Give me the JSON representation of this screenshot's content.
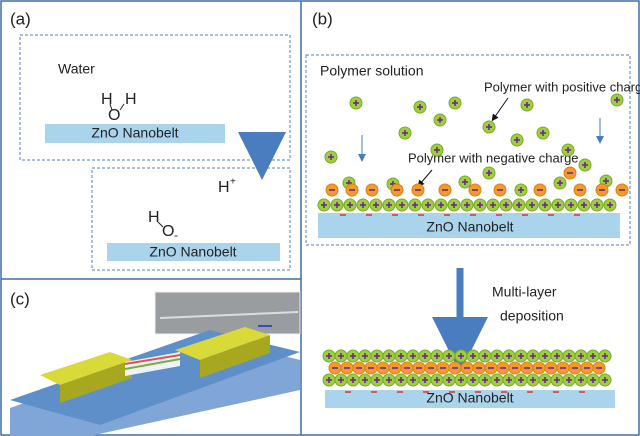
{
  "panel_a": {
    "label": "(a)",
    "medium": "Water",
    "top_molecule": [
      "H",
      "O",
      "H"
    ],
    "top_substrate": "ZnO Nanobelt",
    "ion": "H",
    "ion_charge": "+",
    "bottom_molecule": [
      "H",
      "O",
      "-"
    ],
    "bottom_substrate": "ZnO Nanobelt"
  },
  "panel_b": {
    "label": "(b)",
    "solution": "Polymer solution",
    "positive_label": "Polymer with positive charge",
    "negative_label": "Polymer with negative charge",
    "substrate": "ZnO Nanobelt",
    "step": [
      "Multi-layer",
      "deposition"
    ],
    "result_substrate": "ZnO Nanobelt"
  },
  "panel_c": {
    "label": "(c)"
  }
}
